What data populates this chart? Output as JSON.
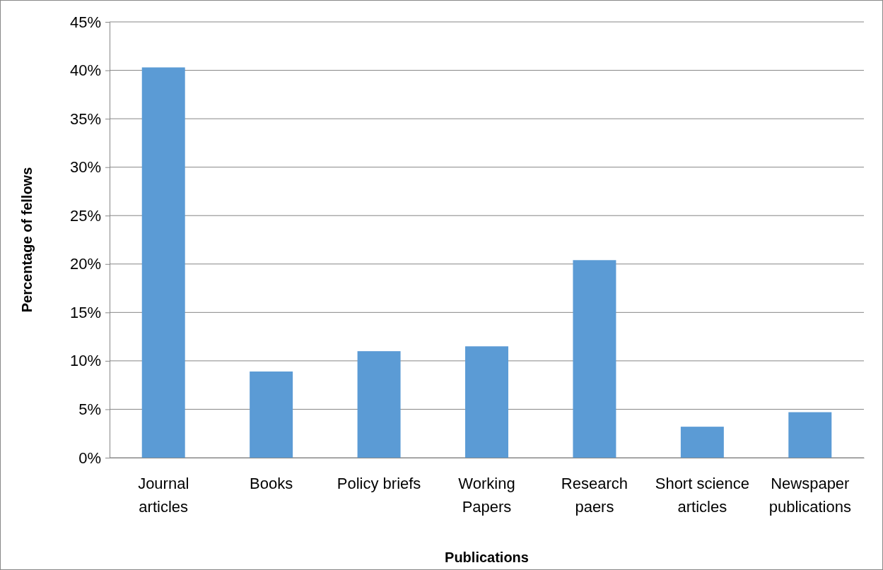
{
  "chart_data": {
    "type": "bar",
    "xlabel": "Publications",
    "ylabel": "Percentage of fellows",
    "categories": [
      "Journal articles",
      "Books",
      "Policy briefs",
      "Working Papers",
      "Research paers",
      "Short science articles",
      "Newspaper publications"
    ],
    "values": [
      40.3,
      8.9,
      11.0,
      11.5,
      20.4,
      3.2,
      4.7
    ],
    "color": "#5b9bd5",
    "ylim": [
      0,
      45
    ],
    "yticks": [
      {
        "value": 0,
        "label": "0%"
      },
      {
        "value": 5,
        "label": "5%"
      },
      {
        "value": 10,
        "label": "10%"
      },
      {
        "value": 15,
        "label": "15%"
      },
      {
        "value": 20,
        "label": "20%"
      },
      {
        "value": 25,
        "label": "25%"
      },
      {
        "value": 30,
        "label": "30%"
      },
      {
        "value": 35,
        "label": "35%"
      },
      {
        "value": 40,
        "label": "40%"
      },
      {
        "value": 45,
        "label": "45%"
      }
    ],
    "grid": "y"
  }
}
